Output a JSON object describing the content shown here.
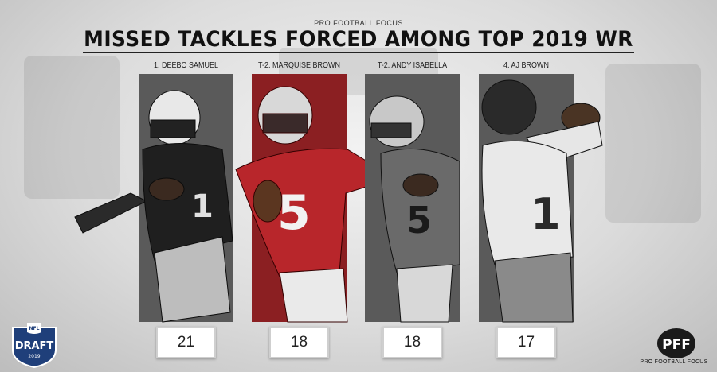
{
  "kicker": "PRO FOOTBALL FOCUS",
  "title": "MISSED TACKLES FORCED AMONG TOP 2019 WR",
  "players": [
    {
      "rank_label": "1. DEEBO SAMUEL",
      "value": 21,
      "display": "21",
      "jersey": "1",
      "panel_color": "#5a5a5a",
      "highlight": false
    },
    {
      "rank_label": "T-2. MARQUISE BROWN",
      "value": 18,
      "display": "18",
      "jersey": "5",
      "panel_color": "#8b1f22",
      "highlight": true
    },
    {
      "rank_label": "T-2. ANDY ISABELLA",
      "value": 18,
      "display": "18",
      "jersey": "5",
      "panel_color": "#5a5a5a",
      "highlight": false
    },
    {
      "rank_label": "4. AJ BROWN",
      "value": 17,
      "display": "17",
      "jersey": "1",
      "panel_color": "#5a5a5a",
      "highlight": false
    }
  ],
  "badge": {
    "text_top": "NFL",
    "text_main": "DRAFT",
    "text_year": "2019"
  },
  "brand": {
    "logo": "PFF",
    "name": "PRO FOOTBALL FOCUS"
  },
  "colors": {
    "highlight": "#8b1f22",
    "panel": "#5a5a5a",
    "draft_blue": "#1f3f7a"
  }
}
